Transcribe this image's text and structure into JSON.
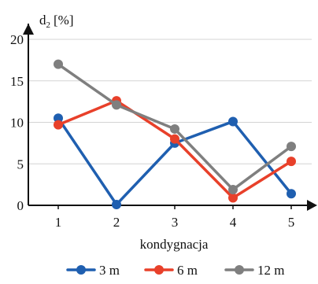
{
  "chart_data": {
    "type": "line",
    "title": "",
    "ylabel_main": "d",
    "ylabel_sub": "2",
    "ylabel_unit": "[%]",
    "xlabel": "kondygnacja",
    "ylim": [
      0,
      20
    ],
    "yticks": [
      0,
      5,
      10,
      15,
      20
    ],
    "categories": [
      "1",
      "2",
      "3",
      "4",
      "5"
    ],
    "grid": "horizontal",
    "legend_position": "bottom",
    "series": [
      {
        "name": "3 m",
        "color": "#1f5fb0",
        "values": [
          10.5,
          0.1,
          7.5,
          10.1,
          1.4
        ]
      },
      {
        "name": "6 m",
        "color": "#e8402a",
        "values": [
          9.7,
          12.6,
          8.0,
          0.9,
          5.3
        ]
      },
      {
        "name": "12 m",
        "color": "#7f7f7f",
        "values": [
          17.0,
          12.1,
          9.2,
          1.9,
          7.1
        ]
      }
    ]
  }
}
